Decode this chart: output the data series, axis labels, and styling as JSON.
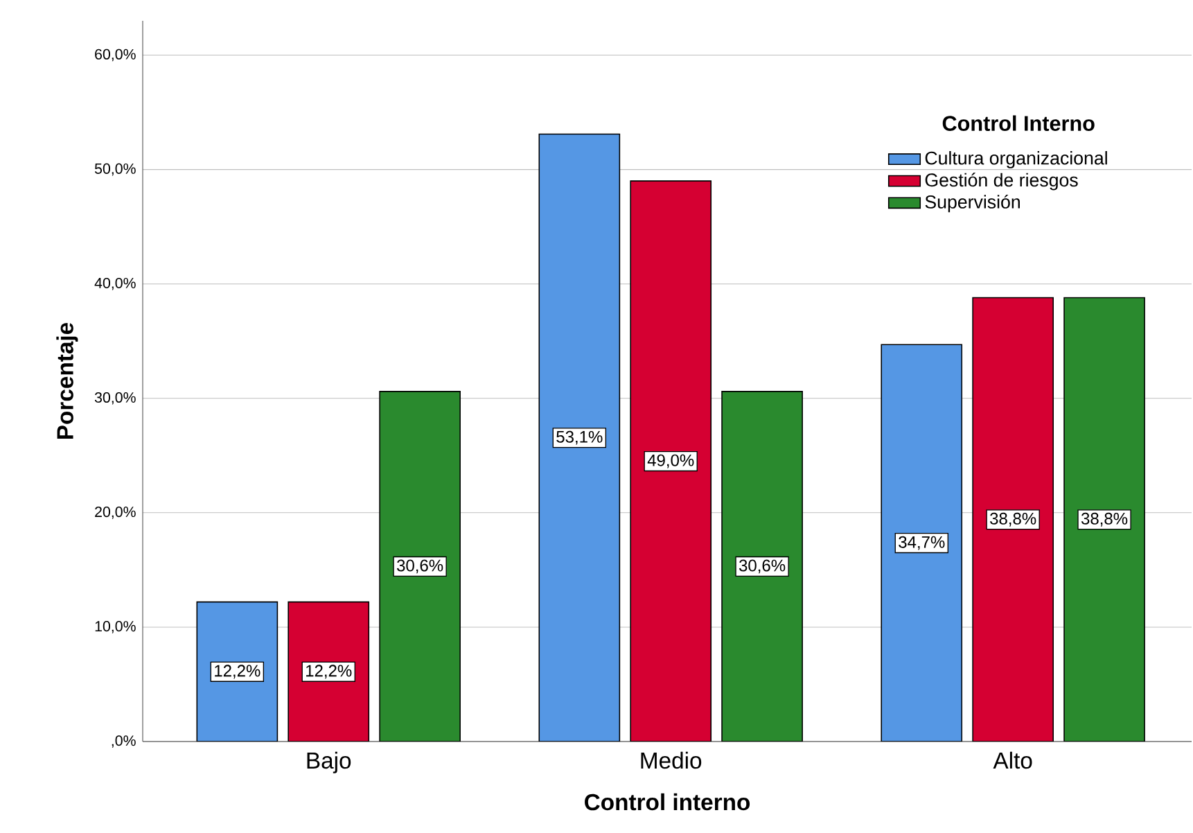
{
  "chart_data": {
    "type": "bar",
    "xlabel": "Control interno",
    "ylabel": "Porcentaje",
    "legend_title": "Control Interno",
    "categories": [
      "Bajo",
      "Medio",
      "Alto"
    ],
    "series": [
      {
        "name": "Cultura organizacional",
        "color": "#5597e4",
        "values": [
          12.2,
          53.1,
          34.7
        ],
        "value_labels": [
          "12,2%",
          "53,1%",
          "34,7%"
        ]
      },
      {
        "name": "Gestión de riesgos",
        "color": "#d50032",
        "values": [
          12.2,
          49.0,
          38.8
        ],
        "value_labels": [
          "12,2%",
          "49,0%",
          "38,8%"
        ]
      },
      {
        "name": "Supervisión",
        "color": "#2a8a2e",
        "values": [
          30.6,
          30.6,
          38.8
        ],
        "value_labels": [
          "30,6%",
          "30,6%",
          "38,8%"
        ]
      }
    ],
    "ylim": [
      0,
      63
    ],
    "yticks": [
      {
        "value": 0,
        "label": ",0%"
      },
      {
        "value": 10,
        "label": "10,0%"
      },
      {
        "value": 20,
        "label": "20,0%"
      },
      {
        "value": 30,
        "label": "30,0%"
      },
      {
        "value": 40,
        "label": "40,0%"
      },
      {
        "value": 50,
        "label": "50,0%"
      },
      {
        "value": 60,
        "label": "60,0%"
      }
    ],
    "grid": "y",
    "legend": "top right"
  }
}
